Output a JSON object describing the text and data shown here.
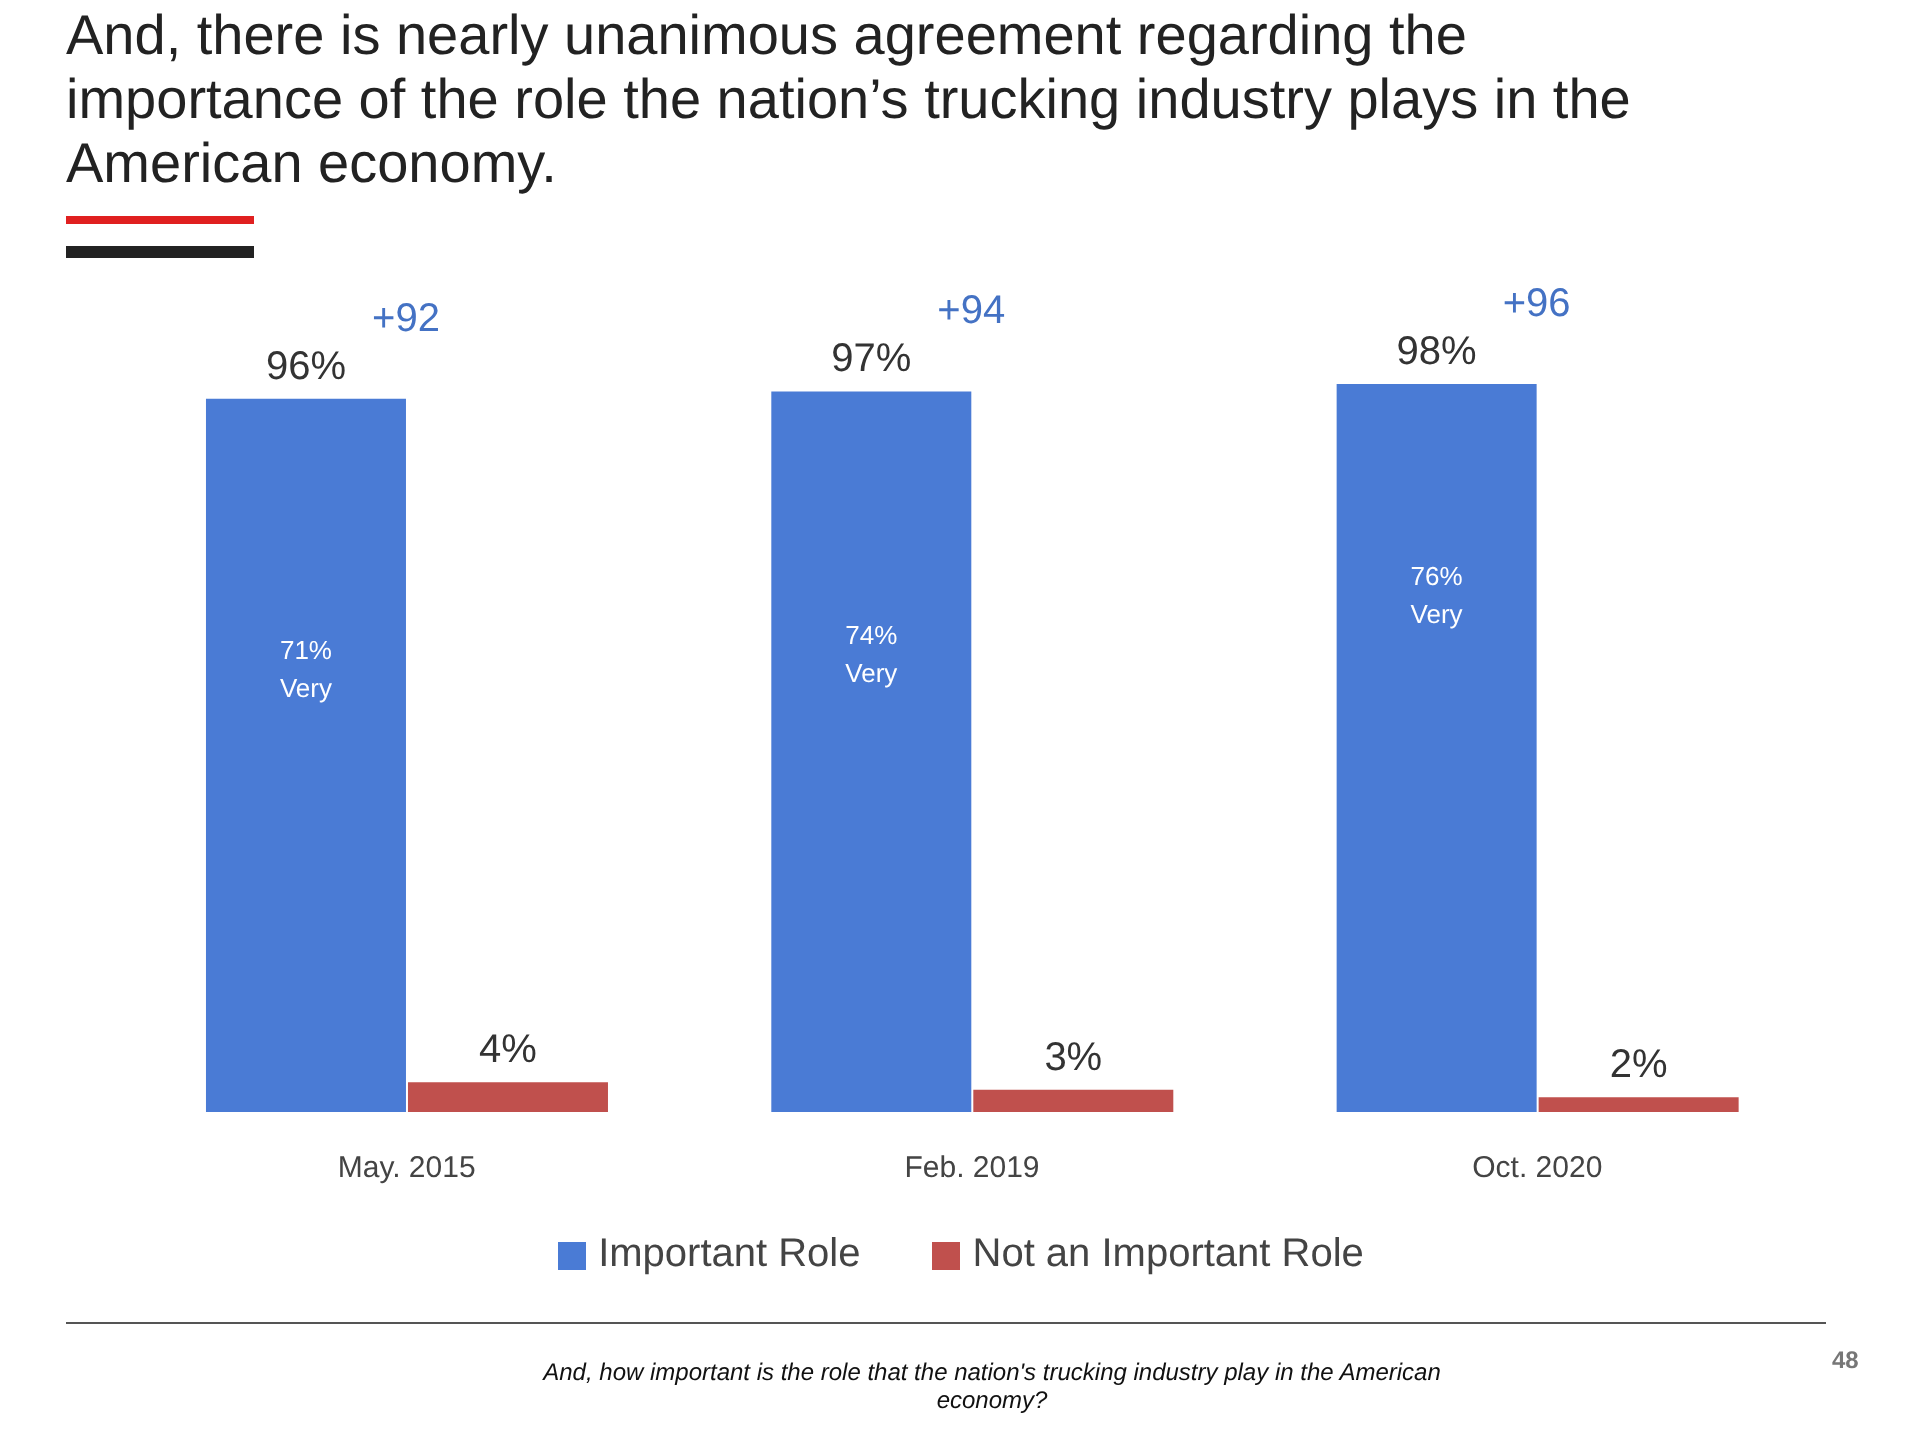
{
  "chart_data": {
    "type": "bar",
    "title": "And, there is nearly unanimous agreement regarding the importance of the role the nation’s trucking industry plays in the American economy.",
    "categories": [
      "May. 2015",
      "Feb. 2019",
      "Oct. 2020"
    ],
    "series": [
      {
        "name": "Important Role",
        "color": "#4a7bd5",
        "values": [
          96,
          97,
          98
        ],
        "value_labels": [
          "96%",
          "97%",
          "98%"
        ]
      },
      {
        "name": "Not an Important Role",
        "color": "#c0504d",
        "values": [
          4,
          3,
          2
        ],
        "value_labels": [
          "4%",
          "3%",
          "2%"
        ]
      }
    ],
    "legend": "bottom",
    "annotations": [
      {
        "text": "+92",
        "x": "May. 2015",
        "y": 96
      },
      {
        "text": "+94",
        "x": "Feb. 2019",
        "y": 97
      },
      {
        "text": "+96",
        "x": "Oct. 2020",
        "y": 98
      },
      {
        "text": "71% Very",
        "x": "May. 2015",
        "y": 61
      },
      {
        "text": "74% Very",
        "x": "Feb. 2019",
        "y": 63
      },
      {
        "text": "76% Very",
        "x": "Oct. 2020",
        "y": 71
      },
      "And, how important is the role that the nation's trucking industry play in the American economy?",
      "48"
    ]
  }
}
